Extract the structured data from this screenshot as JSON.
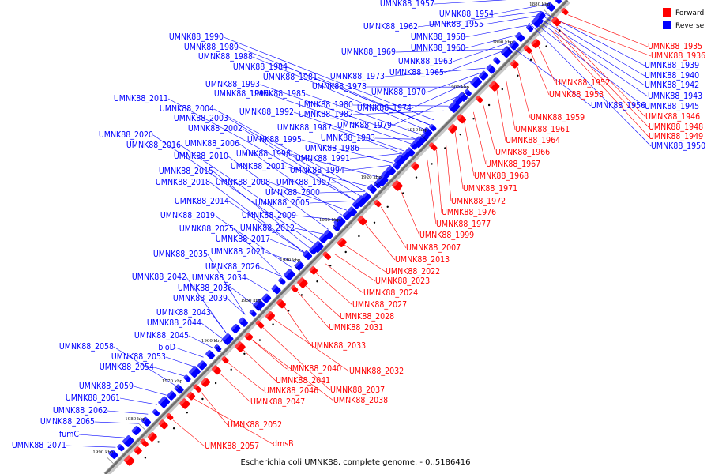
{
  "legend": [
    {
      "name": "Forward",
      "color": "#ff0000"
    },
    {
      "name": "Reverse",
      "color": "#0000ff"
    }
  ],
  "caption": "Escherichia coli UMNK88, complete genome. - 0..5186416",
  "colors": {
    "forward": "#ff0000",
    "reverse": "#0000ff",
    "backbone": "#6e6e6e",
    "tick": "#000000"
  },
  "ticks": [
    "1880 kbp",
    "1890 kbp",
    "1900 kbp",
    "1910 kbp",
    "1920 kbp",
    "1930 kbp",
    "1940 kbp",
    "1950 kbp",
    "1960 kbp",
    "1970 kbp",
    "1980 kbp",
    "1990 kbp"
  ],
  "reverse_labels": [
    "UMNK88_1957",
    "UMNK88_1954",
    "UMNK88_1962",
    "UMNK88_1955",
    "UMNK88_1990",
    "UMNK88_1958",
    "UMNK88_1989",
    "UMNK88_1960",
    "UMNK88_1969",
    "UMNK88_1988",
    "UMNK88_1963",
    "UMNK88_1984",
    "UMNK88_1965",
    "UMNK88_1981",
    "UMNK88_1973",
    "UMNK88_1993",
    "UMNK88_1978",
    "UMNK88_1996",
    "UMNK88_1985",
    "UMNK88_1970",
    "UMNK88_2011",
    "UMNK88_1980",
    "UMNK88_1974",
    "UMNK88_2004",
    "UMNK88_1992",
    "UMNK88_1982",
    "UMNK88_2003",
    "UMNK88_1979",
    "UMNK88_2002",
    "UMNK88_1987",
    "UMNK88_2020",
    "UMNK88_1995",
    "UMNK88_1983",
    "UMNK88_2016",
    "UMNK88_2006",
    "UMNK88_1986",
    "UMNK88_1998",
    "UMNK88_2010",
    "UMNK88_1991",
    "UMNK88_2001",
    "UMNK88_1994",
    "UMNK88_2015",
    "UMNK88_2018",
    "UMNK88_2008",
    "UMNK88_1997",
    "UMNK88_2000",
    "UMNK88_2014",
    "UMNK88_2005",
    "UMNK88_2019",
    "UMNK88_2009",
    "UMNK88_2025",
    "UMNK88_2012",
    "UMNK88_2017",
    "UMNK88_2021",
    "UMNK88_2035",
    "UMNK88_2026",
    "UMNK88_2042",
    "UMNK88_2034",
    "UMNK88_2036",
    "UMNK88_2039",
    "UMNK88_2043",
    "UMNK88_2044",
    "UMNK88_2045",
    "UMNK88_2058",
    "bioD",
    "UMNK88_2053",
    "UMNK88_2054",
    "UMNK88_2059",
    "UMNK88_2061",
    "UMNK88_2062",
    "UMNK88_2065",
    "fumC",
    "UMNK88_2071",
    "UMNK88_1939",
    "UMNK88_1940",
    "UMNK88_1942",
    "UMNK88_1943",
    "UMNK88_1945",
    "UMNK88_1950",
    "UMNK88_1956"
  ],
  "forward_labels": [
    "UMNK88_1935",
    "UMNK88_1936",
    "UMNK88_1952",
    "UMNK88_1953",
    "UMNK88_1946",
    "UMNK88_1948",
    "UMNK88_1949",
    "UMNK88_1959",
    "UMNK88_1961",
    "UMNK88_1964",
    "UMNK88_1966",
    "UMNK88_1967",
    "UMNK88_1968",
    "UMNK88_1971",
    "UMNK88_1972",
    "UMNK88_1976",
    "UMNK88_1977",
    "UMNK88_1999",
    "UMNK88_2007",
    "UMNK88_2013",
    "UMNK88_2022",
    "UMNK88_2023",
    "UMNK88_2024",
    "UMNK88_2027",
    "UMNK88_2028",
    "UMNK88_2031",
    "UMNK88_2033",
    "UMNK88_2040",
    "UMNK88_2032",
    "UMNK88_2041",
    "UMNK88_2046",
    "UMNK88_2037",
    "UMNK88_2047",
    "UMNK88_2038",
    "UMNK88_2052",
    "dmsB",
    "UMNK88_2057"
  ]
}
